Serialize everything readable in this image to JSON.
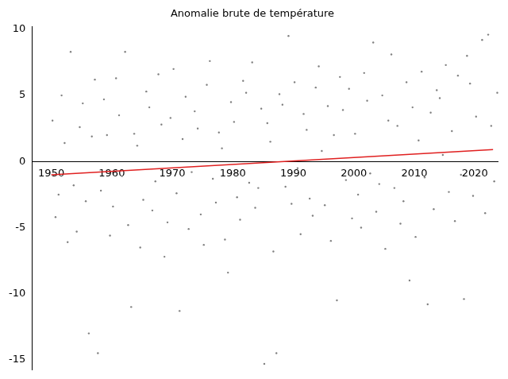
{
  "chart_data": {
    "type": "scatter",
    "title": "Anomalie brute de température",
    "xlim": [
      1946.8,
      2023.9
    ],
    "xticks": [
      1950,
      1960,
      1970,
      1980,
      1990,
      2000,
      2010,
      2020
    ],
    "ylim": [
      -15.8,
      10.2
    ],
    "yticks": [
      -15,
      -10,
      -5,
      0,
      5,
      10
    ],
    "grid": false,
    "series": [
      {
        "type": "scatter",
        "color": "#808080",
        "marker": "point",
        "x": [
          1950.2,
          1950.7,
          1951.2,
          1951.7,
          1952.2,
          1952.7,
          1953.2,
          1953.7,
          1954.2,
          1954.7,
          1955.2,
          1955.7,
          1956.2,
          1956.7,
          1957.2,
          1957.7,
          1958.2,
          1958.7,
          1959.2,
          1959.7,
          1960.2,
          1960.7,
          1961.2,
          1961.7,
          1962.2,
          1962.7,
          1963.2,
          1963.7,
          1964.2,
          1964.7,
          1965.2,
          1965.7,
          1966.2,
          1966.7,
          1967.2,
          1967.7,
          1968.2,
          1968.7,
          1969.2,
          1969.7,
          1970.2,
          1970.7,
          1971.2,
          1971.7,
          1972.2,
          1972.7,
          1973.2,
          1973.7,
          1974.2,
          1974.7,
          1975.2,
          1975.7,
          1976.2,
          1976.7,
          1977.2,
          1977.7,
          1978.2,
          1978.7,
          1979.2,
          1979.7,
          1980.2,
          1980.7,
          1981.2,
          1981.7,
          1982.2,
          1982.7,
          1983.2,
          1983.7,
          1984.2,
          1984.7,
          1985.2,
          1985.7,
          1986.2,
          1986.7,
          1987.2,
          1987.7,
          1988.2,
          1988.7,
          1989.2,
          1989.7,
          1990.2,
          1990.7,
          1991.2,
          1991.7,
          1992.2,
          1992.7,
          1993.2,
          1993.7,
          1994.2,
          1994.7,
          1995.2,
          1995.7,
          1996.2,
          1996.7,
          1997.2,
          1997.7,
          1998.2,
          1998.7,
          1999.2,
          1999.7,
          2000.2,
          2000.7,
          2001.2,
          2001.7,
          2002.2,
          2002.7,
          2003.2,
          2003.7,
          2004.2,
          2004.7,
          2005.2,
          2005.7,
          2006.2,
          2006.7,
          2007.2,
          2007.7,
          2008.2,
          2008.7,
          2009.2,
          2009.7,
          2010.2,
          2010.7,
          2011.2,
          2011.7,
          2012.2,
          2012.7,
          2013.2,
          2013.7,
          2014.2,
          2014.7,
          2015.2,
          2015.7,
          2016.2,
          2016.7,
          2017.2,
          2017.7,
          2018.2,
          2018.7,
          2019.2,
          2019.7,
          2020.2,
          2020.7,
          2021.2,
          2021.7,
          2022.2,
          2022.7,
          2023.2,
          2023.7
        ],
        "values": [
          3.1,
          -4.2,
          -2.5,
          5.0,
          1.4,
          -6.1,
          8.3,
          -1.8,
          -5.3,
          2.6,
          4.4,
          -3.0,
          -13.0,
          1.9,
          6.2,
          -14.5,
          -2.2,
          4.7,
          2.0,
          -5.6,
          -3.4,
          6.3,
          3.5,
          -1.1,
          8.3,
          -4.8,
          -11.0,
          2.1,
          1.2,
          -6.5,
          -2.9,
          5.3,
          4.1,
          -3.7,
          -1.5,
          6.6,
          2.8,
          -7.2,
          -4.6,
          3.3,
          7.0,
          -2.4,
          -11.3,
          1.7,
          4.9,
          -5.1,
          -0.8,
          3.8,
          2.5,
          -4.0,
          -6.3,
          5.8,
          7.6,
          -1.3,
          -3.1,
          2.2,
          1.0,
          -5.9,
          -8.4,
          4.5,
          3.0,
          -2.7,
          -4.4,
          6.1,
          5.2,
          -1.6,
          7.5,
          -3.5,
          -2.0,
          4.0,
          -15.3,
          2.9,
          1.5,
          -6.8,
          -14.5,
          5.1,
          4.3,
          -1.9,
          9.5,
          -3.2,
          6.0,
          -0.5,
          -5.5,
          3.6,
          2.4,
          -2.8,
          -4.1,
          5.6,
          7.2,
          0.8,
          -3.3,
          4.2,
          -6.0,
          2.0,
          -10.5,
          6.4,
          3.9,
          -1.4,
          5.5,
          -4.3,
          2.1,
          -2.5,
          -5.0,
          6.7,
          4.6,
          -0.9,
          9.0,
          -3.8,
          -1.7,
          5.0,
          -6.6,
          3.1,
          8.1,
          -2.0,
          2.7,
          -4.7,
          -3.0,
          6.0,
          -9.0,
          4.1,
          -5.7,
          1.6,
          6.8,
          -1.2,
          -10.8,
          3.7,
          -3.6,
          5.4,
          4.8,
          0.5,
          7.3,
          -2.3,
          2.3,
          -4.5,
          6.5,
          -1.0,
          -10.4,
          8.0,
          5.9,
          -2.6,
          3.4,
          -0.7,
          9.2,
          -3.9,
          9.6,
          2.7,
          -1.5,
          5.2
        ]
      },
      {
        "type": "line",
        "color": "#e02020",
        "line_style": "solid",
        "x": [
          1950,
          2023
        ],
        "values": [
          -1.0,
          0.9
        ]
      }
    ]
  }
}
